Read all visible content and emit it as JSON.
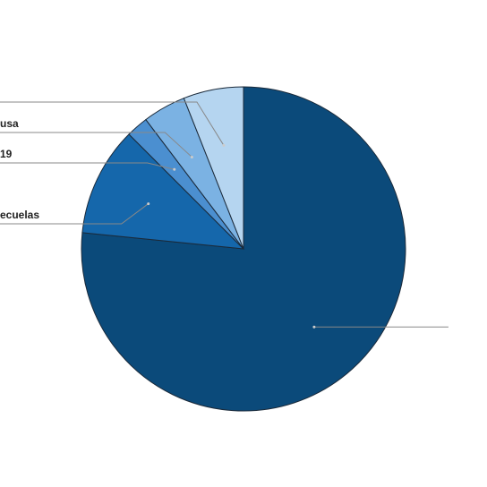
{
  "chart_data": {
    "type": "pie",
    "categories": [
      null,
      "ecuelas",
      "19",
      "usa",
      null
    ],
    "values": [
      76.6,
      10.9,
      2.2,
      4.3,
      6.0
    ],
    "colors": [
      "#0b4a7a",
      "#1567ab",
      "#4b8fd0",
      "#7bb2e3",
      "#b5d5f0"
    ]
  }
}
